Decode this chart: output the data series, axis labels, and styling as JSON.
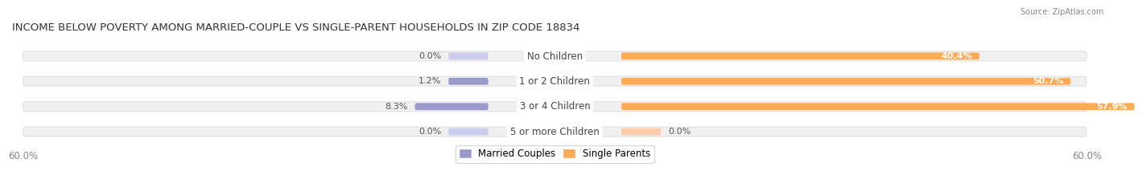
{
  "title": "INCOME BELOW POVERTY AMONG MARRIED-COUPLE VS SINGLE-PARENT HOUSEHOLDS IN ZIP CODE 18834",
  "source": "Source: ZipAtlas.com",
  "categories": [
    "No Children",
    "1 or 2 Children",
    "3 or 4 Children",
    "5 or more Children"
  ],
  "married_values": [
    0.0,
    1.2,
    8.3,
    0.0
  ],
  "single_values": [
    40.4,
    50.7,
    57.9,
    0.0
  ],
  "married_color": "#9999cc",
  "married_color_light": "#ccccee",
  "single_color": "#ffaa55",
  "single_color_light": "#ffccaa",
  "bar_bg_color": "#f0f0f0",
  "bar_bg_edge": "#e0e0e0",
  "axis_limit": 60.0,
  "title_fontsize": 9.5,
  "label_fontsize": 8.5,
  "value_fontsize": 8.0,
  "tick_fontsize": 8.5,
  "background_color": "#ffffff",
  "legend_married": "Married Couples",
  "legend_single": "Single Parents"
}
